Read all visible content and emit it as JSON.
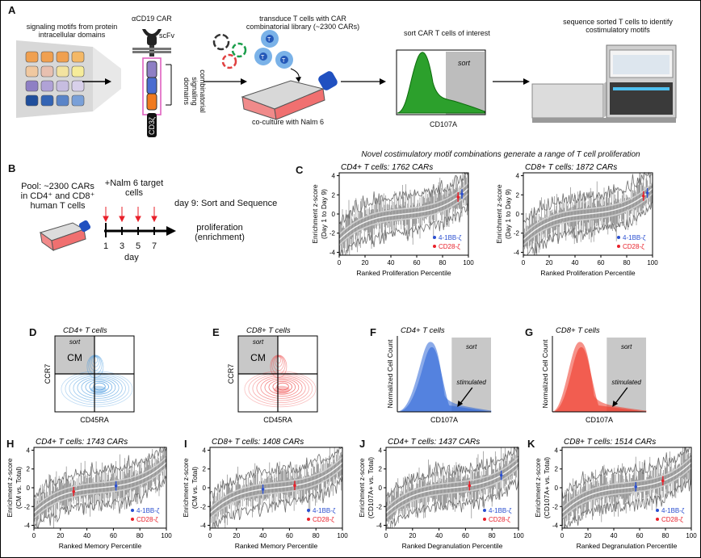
{
  "panel_labels": {
    "A": "A",
    "B": "B",
    "C": "C",
    "D": "D",
    "E": "E",
    "F": "F",
    "G": "G",
    "H": "H",
    "I": "I",
    "J": "J",
    "K": "K"
  },
  "panelA": {
    "signaling_motifs": "signaling motifs from protein intracellular domains",
    "car_title": "αCD19 CAR",
    "scfv": "scFv",
    "cd3z": "CD3ζ",
    "combinatorial": "combinatorial signaling domains",
    "transduce": "transduce T cells with CAR combinatorial library (~2300 CARs)",
    "tcell_letter": "T",
    "coculture": "co-culture with Nalm 6",
    "sort_header": "sort CAR T cells of interest",
    "sort_box": "sort",
    "cd107a": "CD107A",
    "sequence": "sequence sorted T cells to identify costimulatory motifs",
    "grid_colors": [
      "#f0a050",
      "#f0a050",
      "#f0a050",
      "#f4b866",
      "#f0c8a0",
      "#e8c0b0",
      "#f3e3a0",
      "#f6ec9a",
      "#8e7fc4",
      "#b0a2d6",
      "#c7bde0",
      "#d8d0ea",
      "#1f4e9c",
      "#3464b4",
      "#5a84c8",
      "#7aa0d8"
    ]
  },
  "panelB": {
    "pool": "Pool: ~2300 CARs in CD4⁺ and CD8⁺ human T cells",
    "nalm": "+Nalm 6 target cells",
    "days": [
      "1",
      "3",
      "5",
      "7"
    ],
    "day_label": "day",
    "day9": "day 9: Sort and Sequence",
    "proliferation": "proliferation (enrichment)"
  },
  "panelC": {
    "header": "Novel costimulatory motif combinations generate a range of T cell proliferation",
    "plots": [
      {
        "title": "CD4+ T cells: 1762 CARs",
        "xlabel": "Ranked Proliferation Percentile",
        "ylabel": "Enrichment z-score (Day 1 to Day 9)",
        "bb": 95,
        "cd28": 92
      },
      {
        "title": "CD8+ T cells: 1872 CARs",
        "xlabel": "Ranked Proliferation Percentile",
        "ylabel": "Enrichment z-score (Day 1 to Day 9)",
        "bb": 96,
        "cd28": 93
      }
    ]
  },
  "flow": {
    "D": {
      "title": "CD4+ T cells",
      "sort": "sort",
      "cm": "CM",
      "y": "CCR7",
      "x": "CD45RA",
      "color": "#4a9be0"
    },
    "E": {
      "title": "CD8+ T cells",
      "sort": "sort",
      "cm": "CM",
      "y": "CCR7",
      "x": "CD45RA",
      "color": "#f05050"
    },
    "F": {
      "title": "CD4+ T cells",
      "sort": "sort",
      "stim": "stimulated",
      "y": "Normalized Cell Count",
      "x": "CD107A",
      "color": "#2f67d8"
    },
    "G": {
      "title": "CD8+ T cells",
      "sort": "sort",
      "stim": "stimulated",
      "y": "Normalized Cell Count",
      "x": "CD107A",
      "color": "#f03a2a"
    }
  },
  "bottom": {
    "plots": [
      {
        "title": "CD4+ T cells: 1743 CARs",
        "xlabel": "Ranked Memory Percentile",
        "ylabel": "Enrichment z-score (CM vs. Total)",
        "bb": 62,
        "cd28": 30
      },
      {
        "title": "CD8+ T cells: 1408 CARs",
        "xlabel": "Ranked Memory Percentile",
        "ylabel": "Enrichment z-score (CM vs. Total)",
        "bb": 40,
        "cd28": 64
      },
      {
        "title": "CD4+ T cells: 1437 CARs",
        "xlabel": "Ranked Degranulation Percentile",
        "ylabel": "Enrichment z-score (CD107A+ vs. Total)",
        "bb": 87,
        "cd28": 63
      },
      {
        "title": "CD8+ T cells: 1514 CARs",
        "xlabel": "Ranked Degranulation Percentile",
        "ylabel": "Enrichment z-score (CD107A+ vs. Total)",
        "bb": 57,
        "cd28": 78
      }
    ]
  },
  "legend": {
    "bb": "4-1BB-ζ",
    "cd28": "CD28-ζ",
    "bb_color": "#2a4fd0",
    "cd28_color": "#e8202a"
  },
  "axis": {
    "yticks": [
      "4",
      "2",
      "0",
      "-2",
      "-4"
    ],
    "xticks": [
      "0",
      "20",
      "40",
      "60",
      "80",
      "100"
    ]
  }
}
